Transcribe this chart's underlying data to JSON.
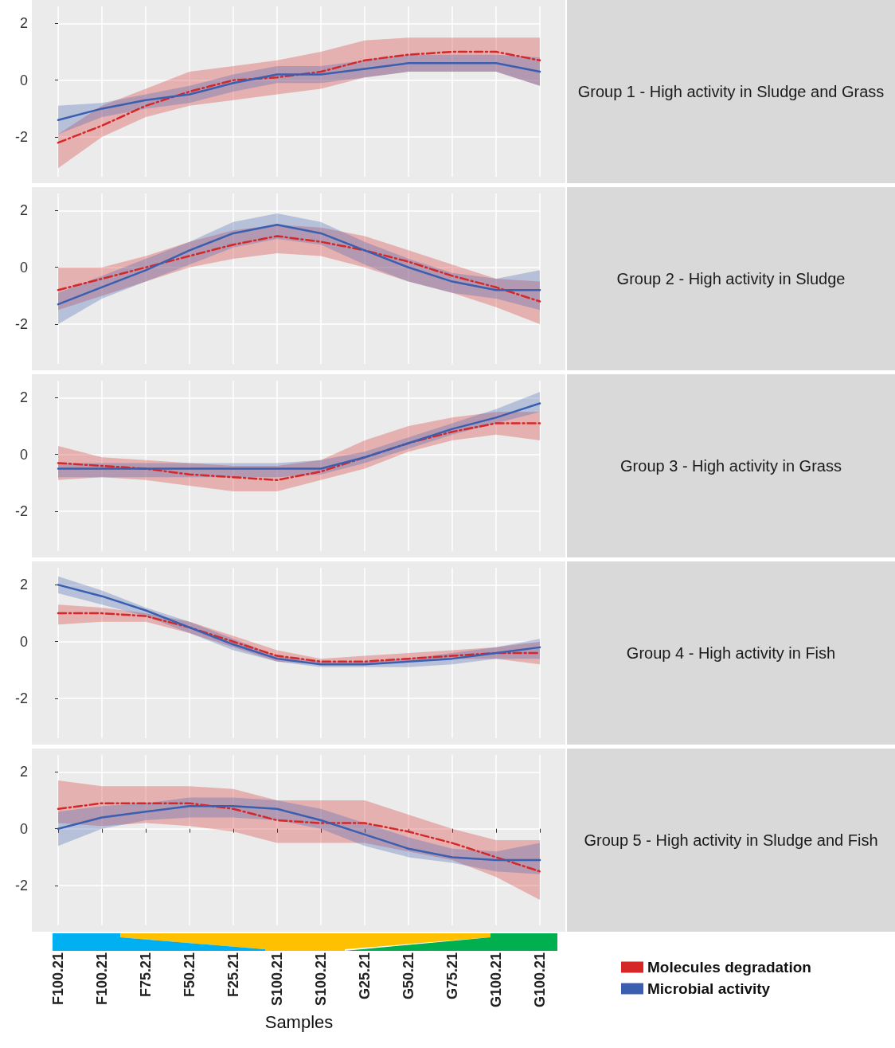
{
  "chart_data": [
    {
      "type": "line",
      "y2label": "Group 1 - High activity in Sludge and Grass",
      "categories": [
        null,
        null,
        null,
        null,
        null,
        null,
        null,
        null,
        null,
        null,
        null,
        null
      ],
      "ylim": [
        -3.4,
        2.6
      ],
      "yticks": [
        -2,
        0,
        2
      ],
      "grid": true,
      "tick_labels": "y",
      "legend": false,
      "series": [
        {
          "color": "#d62728",
          "line_style": "dashed",
          "values": [
            -2.2,
            -1.6,
            -0.9,
            -0.4,
            0.0,
            0.1,
            0.3,
            0.7,
            0.9,
            1.0,
            1.0,
            0.7
          ],
          "lower": [
            -3.1,
            -2.0,
            -1.3,
            -0.9,
            -0.7,
            -0.5,
            -0.3,
            0.1,
            0.3,
            0.3,
            0.3,
            -0.2
          ],
          "upper": [
            -1.9,
            -0.9,
            -0.3,
            0.3,
            0.5,
            0.7,
            1.0,
            1.4,
            1.5,
            1.5,
            1.5,
            1.5
          ]
        },
        {
          "color": "#3a5fb0",
          "line_style": "solid",
          "values": [
            -1.4,
            -1.0,
            -0.7,
            -0.5,
            -0.1,
            0.2,
            0.2,
            0.4,
            0.6,
            0.6,
            0.6,
            0.3
          ],
          "lower": [
            -1.9,
            -1.3,
            -1.0,
            -0.8,
            -0.4,
            -0.1,
            -0.1,
            0.1,
            0.3,
            0.3,
            0.3,
            -0.2
          ],
          "upper": [
            -0.9,
            -0.8,
            -0.5,
            -0.2,
            0.2,
            0.5,
            0.5,
            0.7,
            0.9,
            0.9,
            0.9,
            0.8
          ]
        }
      ]
    },
    {
      "type": "line",
      "y2label": "Group 2 - High activity in Sludge",
      "categories": [
        null,
        null,
        null,
        null,
        null,
        null,
        null,
        null,
        null,
        null,
        null,
        null
      ],
      "ylim": [
        -3.4,
        2.6
      ],
      "yticks": [
        -2,
        0,
        2
      ],
      "grid": true,
      "tick_labels": "y",
      "legend": false,
      "series": [
        {
          "color": "#d62728",
          "line_style": "dashed",
          "values": [
            -0.8,
            -0.4,
            0.0,
            0.4,
            0.8,
            1.1,
            0.9,
            0.6,
            0.2,
            -0.3,
            -0.7,
            -1.2
          ],
          "lower": [
            -1.5,
            -1.0,
            -0.5,
            0.0,
            0.3,
            0.5,
            0.4,
            0.0,
            -0.5,
            -0.9,
            -1.4,
            -2.0
          ],
          "upper": [
            0.0,
            0.0,
            0.4,
            0.9,
            1.3,
            1.5,
            1.4,
            1.1,
            0.6,
            0.1,
            -0.4,
            -0.5
          ]
        },
        {
          "color": "#3a5fb0",
          "line_style": "solid",
          "values": [
            -1.3,
            -0.7,
            -0.1,
            0.6,
            1.2,
            1.5,
            1.2,
            0.6,
            0.0,
            -0.5,
            -0.8,
            -0.8
          ],
          "lower": [
            -2.0,
            -1.1,
            -0.5,
            0.1,
            0.7,
            1.0,
            0.8,
            0.1,
            -0.5,
            -0.9,
            -1.1,
            -1.5
          ],
          "upper": [
            -0.9,
            -0.3,
            0.3,
            0.9,
            1.6,
            1.9,
            1.6,
            0.9,
            0.3,
            -0.2,
            -0.4,
            -0.1
          ]
        }
      ]
    },
    {
      "type": "line",
      "y2label": "Group 3 - High activity in Grass",
      "categories": [
        null,
        null,
        null,
        null,
        null,
        null,
        null,
        null,
        null,
        null,
        null,
        null
      ],
      "ylim": [
        -3.4,
        2.6
      ],
      "yticks": [
        -2,
        0,
        2
      ],
      "grid": true,
      "tick_labels": "y",
      "legend": false,
      "series": [
        {
          "color": "#d62728",
          "line_style": "dashed",
          "values": [
            -0.3,
            -0.4,
            -0.5,
            -0.7,
            -0.8,
            -0.9,
            -0.6,
            -0.1,
            0.4,
            0.8,
            1.1,
            1.1
          ],
          "lower": [
            -0.9,
            -0.8,
            -0.9,
            -1.1,
            -1.3,
            -1.3,
            -0.9,
            -0.5,
            0.1,
            0.5,
            0.7,
            0.5
          ],
          "upper": [
            0.3,
            -0.1,
            -0.2,
            -0.3,
            -0.4,
            -0.4,
            -0.2,
            0.5,
            1.0,
            1.3,
            1.5,
            1.5
          ]
        },
        {
          "color": "#3a5fb0",
          "line_style": "solid",
          "values": [
            -0.5,
            -0.5,
            -0.5,
            -0.5,
            -0.5,
            -0.5,
            -0.5,
            -0.1,
            0.4,
            0.9,
            1.3,
            1.8
          ],
          "lower": [
            -0.8,
            -0.8,
            -0.8,
            -0.8,
            -0.8,
            -0.8,
            -0.7,
            -0.3,
            0.2,
            0.7,
            1.1,
            1.5
          ],
          "upper": [
            -0.3,
            -0.3,
            -0.3,
            -0.3,
            -0.3,
            -0.3,
            -0.2,
            0.1,
            0.6,
            1.1,
            1.6,
            2.2
          ]
        }
      ]
    },
    {
      "type": "line",
      "y2label": "Group 4 - High activity in Fish",
      "categories": [
        null,
        null,
        null,
        null,
        null,
        null,
        null,
        null,
        null,
        null,
        null,
        null
      ],
      "ylim": [
        -3.4,
        2.6
      ],
      "yticks": [
        -2,
        0,
        2
      ],
      "grid": true,
      "tick_labels": "y",
      "legend": false,
      "series": [
        {
          "color": "#d62728",
          "line_style": "dashed",
          "values": [
            1.0,
            1.0,
            0.9,
            0.5,
            0.0,
            -0.5,
            -0.7,
            -0.7,
            -0.6,
            -0.5,
            -0.4,
            -0.4
          ],
          "lower": [
            0.6,
            0.7,
            0.7,
            0.3,
            -0.2,
            -0.7,
            -0.8,
            -0.8,
            -0.7,
            -0.6,
            -0.6,
            -0.8
          ],
          "upper": [
            1.3,
            1.2,
            1.0,
            0.7,
            0.2,
            -0.3,
            -0.6,
            -0.5,
            -0.4,
            -0.3,
            -0.2,
            0.0
          ]
        },
        {
          "color": "#3a5fb0",
          "line_style": "solid",
          "values": [
            2.0,
            1.6,
            1.1,
            0.5,
            -0.1,
            -0.6,
            -0.8,
            -0.8,
            -0.7,
            -0.6,
            -0.4,
            -0.2
          ],
          "lower": [
            1.7,
            1.3,
            0.9,
            0.3,
            -0.3,
            -0.7,
            -0.9,
            -0.9,
            -0.9,
            -0.8,
            -0.6,
            -0.6
          ],
          "upper": [
            2.3,
            1.8,
            1.2,
            0.7,
            0.1,
            -0.5,
            -0.7,
            -0.7,
            -0.6,
            -0.4,
            -0.2,
            0.1
          ]
        }
      ]
    },
    {
      "type": "line",
      "y2label": "Group 5 - High activity in Sludge and Fish",
      "xlabel": "Samples",
      "categories": [
        "F100.21",
        "F100.21",
        "F75.21",
        "F50.21",
        "F25.21",
        "S100.21",
        "S100.21",
        "G25.21",
        "G50.21",
        "G75.21",
        "G100.21",
        "G100.21"
      ],
      "ylim": [
        -3.4,
        2.6
      ],
      "yticks": [
        -2,
        0,
        2
      ],
      "grid": true,
      "legend": "bottom right",
      "series": [
        {
          "name": "Molecules degradation",
          "color": "#d62728",
          "line_style": "dashed",
          "values": [
            0.7,
            0.9,
            0.9,
            0.9,
            0.7,
            0.3,
            0.2,
            0.2,
            -0.1,
            -0.5,
            -1.0,
            -1.5
          ],
          "lower": [
            0.2,
            0.1,
            0.2,
            0.1,
            -0.1,
            -0.5,
            -0.5,
            -0.5,
            -0.8,
            -1.1,
            -1.7,
            -2.5
          ],
          "upper": [
            1.7,
            1.5,
            1.5,
            1.5,
            1.4,
            1.0,
            1.0,
            1.0,
            0.5,
            0.0,
            -0.4,
            -0.4
          ]
        },
        {
          "name": "Microbial activity",
          "color": "#3a5fb0",
          "line_style": "solid",
          "values": [
            0.0,
            0.4,
            0.6,
            0.8,
            0.8,
            0.7,
            0.3,
            -0.2,
            -0.7,
            -1.0,
            -1.1,
            -1.1
          ],
          "lower": [
            -0.6,
            0.0,
            0.3,
            0.4,
            0.4,
            0.3,
            0.0,
            -0.6,
            -1.0,
            -1.2,
            -1.5,
            -1.6
          ],
          "upper": [
            0.6,
            0.8,
            0.9,
            1.1,
            1.1,
            1.0,
            0.7,
            0.2,
            -0.3,
            -0.7,
            -0.8,
            -0.5
          ]
        }
      ]
    }
  ]
}
